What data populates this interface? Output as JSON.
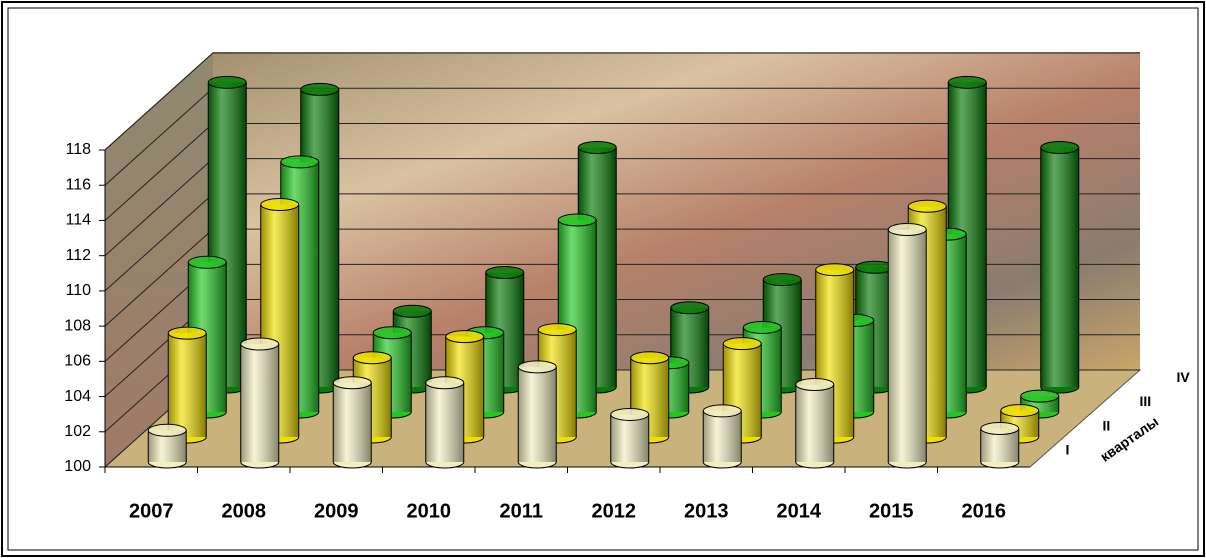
{
  "chart_data": {
    "type": "bar3d",
    "categories": [
      "2007",
      "2008",
      "2009",
      "2010",
      "2011",
      "2012",
      "2013",
      "2014",
      "2015",
      "2016"
    ],
    "series": [
      {
        "name": "I",
        "color": "#f2eec2",
        "values": [
          101.8,
          106.7,
          104.5,
          104.5,
          105.4,
          102.7,
          102.9,
          104.4,
          113.2,
          101.9
        ]
      },
      {
        "name": "II",
        "color": "#f0e000",
        "values": [
          105.9,
          113.2,
          104.5,
          105.7,
          106.1,
          104.5,
          105.3,
          109.5,
          113.1,
          101.5
        ]
      },
      {
        "name": "III",
        "color": "#22c722",
        "values": [
          108.5,
          114.2,
          104.5,
          104.5,
          110.9,
          102.8,
          104.8,
          105.2,
          110.1,
          100.9
        ]
      },
      {
        "name": "IV",
        "color": "#067a06",
        "values": [
          117.3,
          116.9,
          104.3,
          106.5,
          113.6,
          104.5,
          106.1,
          106.8,
          117.3,
          113.6
        ]
      }
    ],
    "depth_label": "кварталы",
    "ylim": [
      100,
      118
    ],
    "yticks": [
      100,
      102,
      104,
      106,
      108,
      110,
      112,
      114,
      116,
      118
    ],
    "grid": true
  }
}
